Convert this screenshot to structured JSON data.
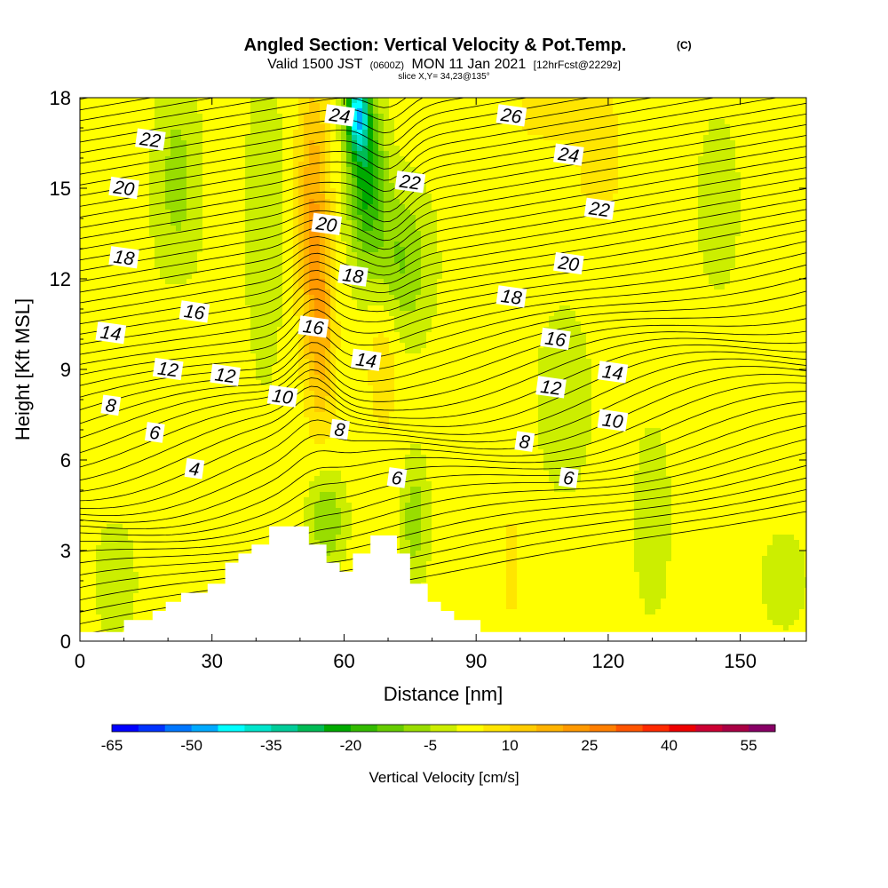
{
  "chart_data": {
    "type": "heatmap",
    "title": "Angled Section: Vertical Velocity & Pot.Temp.",
    "title_unit": "(C)",
    "subtitle_prefix": "Valid 1500 JST",
    "subtitle_utc": "(0600Z)",
    "subtitle_date": "MON 11 Jan 2021",
    "subtitle_fcst": "[12hrFcst@2229z]",
    "slice_label": "slice X,Y= 34,23@135°",
    "xlabel": "Distance [nm]",
    "ylabel": "Height [Kft MSL]",
    "xlim": [
      0,
      165
    ],
    "ylim": [
      0,
      18
    ],
    "x_ticks": [
      0,
      30,
      60,
      90,
      120,
      150
    ],
    "x_tick_labels": [
      "0",
      "30",
      "60",
      "90",
      "120",
      "150"
    ],
    "y_ticks": [
      0,
      3,
      6,
      9,
      12,
      15,
      18
    ],
    "y_tick_labels": [
      "0",
      "3",
      "6",
      "9",
      "12",
      "15",
      "18"
    ],
    "colorbar": {
      "label": "Vertical Velocity [cm/s]",
      "min": -65,
      "max": 60,
      "step": 5,
      "tick_values": [
        -65,
        -50,
        -35,
        -20,
        -5,
        10,
        25,
        40,
        55
      ],
      "tick_labels": [
        "-65",
        "-50",
        "-35",
        "-20",
        "-5",
        "10",
        "25",
        "40",
        "55"
      ],
      "colors": [
        "#0000ff",
        "#0033ff",
        "#0077ff",
        "#00aaff",
        "#00ffff",
        "#00e5cc",
        "#00cc99",
        "#00bb55",
        "#00aa00",
        "#33bb00",
        "#66cc00",
        "#99dd00",
        "#ccee00",
        "#ffff00",
        "#ffe500",
        "#ffcc00",
        "#ffb300",
        "#ff9900",
        "#ff7f00",
        "#ff5500",
        "#ff2a00",
        "#ee0000",
        "#cc0033",
        "#aa0044",
        "#880066"
      ]
    },
    "theta_contour_labels": [
      {
        "text": "24",
        "x": 59,
        "y": 17.4
      },
      {
        "text": "26",
        "x": 98,
        "y": 17.4
      },
      {
        "text": "22",
        "x": 16,
        "y": 16.6
      },
      {
        "text": "24",
        "x": 111,
        "y": 16.1
      },
      {
        "text": "20",
        "x": 10,
        "y": 15.0
      },
      {
        "text": "22",
        "x": 75,
        "y": 15.2
      },
      {
        "text": "22",
        "x": 118,
        "y": 14.3
      },
      {
        "text": "20",
        "x": 56,
        "y": 13.8
      },
      {
        "text": "18",
        "x": 10,
        "y": 12.7
      },
      {
        "text": "20",
        "x": 111,
        "y": 12.5
      },
      {
        "text": "18",
        "x": 62,
        "y": 12.1
      },
      {
        "text": "18",
        "x": 98,
        "y": 11.4
      },
      {
        "text": "16",
        "x": 26,
        "y": 10.9
      },
      {
        "text": "14",
        "x": 7,
        "y": 10.2
      },
      {
        "text": "16",
        "x": 53,
        "y": 10.4
      },
      {
        "text": "16",
        "x": 108,
        "y": 10.0
      },
      {
        "text": "14",
        "x": 65,
        "y": 9.3
      },
      {
        "text": "12",
        "x": 20,
        "y": 9.0
      },
      {
        "text": "12",
        "x": 33,
        "y": 8.8
      },
      {
        "text": "14",
        "x": 121,
        "y": 8.9
      },
      {
        "text": "12",
        "x": 107,
        "y": 8.4
      },
      {
        "text": "10",
        "x": 46,
        "y": 8.1
      },
      {
        "text": "8",
        "x": 7,
        "y": 7.8
      },
      {
        "text": "10",
        "x": 121,
        "y": 7.3
      },
      {
        "text": "8",
        "x": 59,
        "y": 7.0
      },
      {
        "text": "6",
        "x": 17,
        "y": 6.9
      },
      {
        "text": "8",
        "x": 101,
        "y": 6.6
      },
      {
        "text": "4",
        "x": 26,
        "y": 5.7
      },
      {
        "text": "6",
        "x": 72,
        "y": 5.4
      },
      {
        "text": "6",
        "x": 111,
        "y": 5.4
      }
    ],
    "terrain_nm_kft": [
      [
        0,
        0.3
      ],
      [
        10,
        0.3
      ],
      [
        10,
        0.7
      ],
      [
        16.5,
        0.7
      ],
      [
        16.5,
        1.0
      ],
      [
        19.5,
        1.0
      ],
      [
        19.5,
        1.3
      ],
      [
        23,
        1.3
      ],
      [
        23,
        1.6
      ],
      [
        29,
        1.6
      ],
      [
        29,
        1.9
      ],
      [
        33,
        1.9
      ],
      [
        33,
        2.6
      ],
      [
        36,
        2.6
      ],
      [
        36,
        2.9
      ],
      [
        39,
        2.9
      ],
      [
        39,
        3.2
      ],
      [
        43,
        3.2
      ],
      [
        43,
        3.8
      ],
      [
        52,
        3.8
      ],
      [
        52,
        3.2
      ],
      [
        56,
        3.2
      ],
      [
        56,
        2.6
      ],
      [
        59,
        2.6
      ],
      [
        59,
        2.3
      ],
      [
        62,
        2.3
      ],
      [
        62,
        2.9
      ],
      [
        66,
        2.9
      ],
      [
        66,
        3.5
      ],
      [
        72,
        3.5
      ],
      [
        72,
        2.9
      ],
      [
        75,
        2.9
      ],
      [
        75,
        1.9
      ],
      [
        79,
        1.9
      ],
      [
        79,
        1.3
      ],
      [
        82,
        1.3
      ],
      [
        82,
        1.0
      ],
      [
        85,
        1.0
      ],
      [
        85,
        0.7
      ],
      [
        91,
        0.7
      ],
      [
        91,
        0.3
      ],
      [
        165,
        0.3
      ]
    ]
  }
}
